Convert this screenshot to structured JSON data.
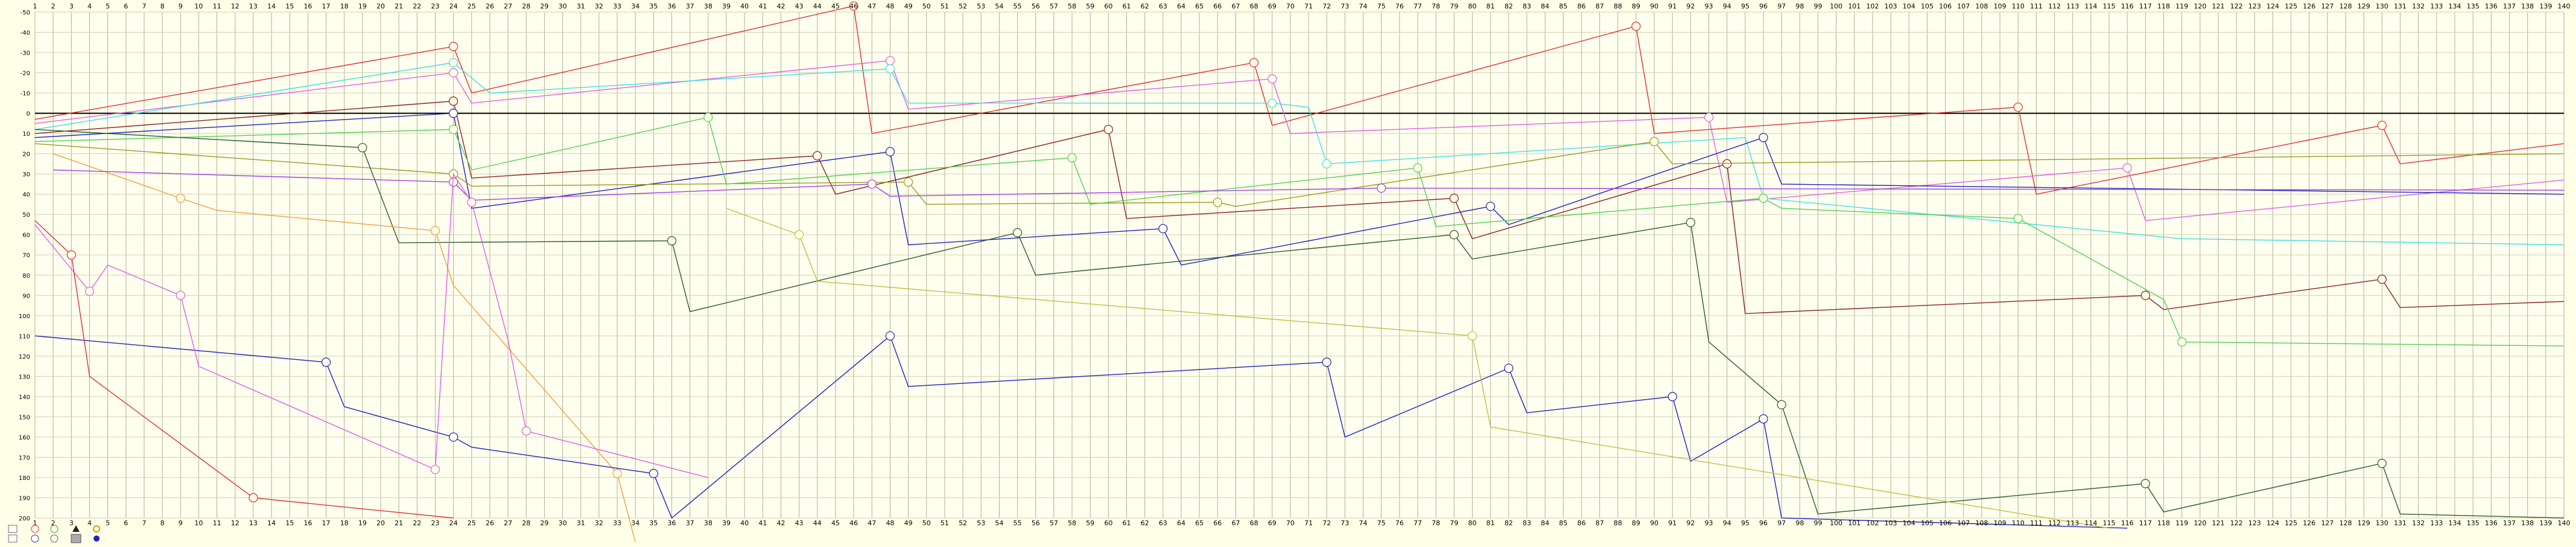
{
  "chart_data": {
    "type": "line",
    "title": "",
    "xlabel": "",
    "ylabel": "",
    "grid": true,
    "x_ticks": [
      1,
      2,
      3,
      4,
      5,
      6,
      7,
      8,
      9,
      10,
      11,
      12,
      13,
      14,
      15,
      16,
      17,
      18,
      19,
      20,
      21,
      22,
      23,
      24,
      25,
      26,
      27,
      28,
      29,
      30,
      31,
      32,
      33,
      34,
      35,
      36,
      37,
      38,
      39,
      40,
      41,
      42,
      43,
      44,
      45,
      46,
      47,
      48,
      49,
      50,
      51,
      52,
      53,
      54,
      55,
      56,
      57,
      58,
      59,
      60,
      61,
      62,
      63,
      64,
      65,
      66,
      67,
      68,
      69,
      70,
      71,
      72,
      73,
      74,
      75,
      76,
      77,
      78,
      79,
      80,
      81,
      82,
      83,
      84,
      85,
      86,
      87,
      88,
      89,
      90,
      91,
      92,
      93,
      94,
      95,
      96,
      97,
      98,
      99,
      100,
      101,
      102,
      103,
      104,
      105,
      106,
      107,
      108,
      109,
      110,
      111,
      112,
      113,
      114,
      115,
      116,
      117,
      118,
      119,
      120,
      121,
      122,
      123,
      124,
      125,
      126,
      127,
      128,
      129,
      130,
      131,
      132,
      133,
      134,
      135,
      136,
      137,
      138,
      139,
      140
    ],
    "y_ticks": [
      -50,
      -40,
      -30,
      -20,
      -10,
      0,
      10,
      20,
      30,
      40,
      50,
      60,
      70,
      80,
      90,
      100,
      110,
      120,
      130,
      140,
      150,
      160,
      170,
      180,
      190,
      200
    ],
    "xlim": [
      1,
      140
    ],
    "ylim": [
      -50,
      200
    ],
    "series": [
      {
        "color": "#e03030",
        "points": [
          [
            1,
            3
          ],
          [
            24,
            -33
          ],
          [
            25,
            -10
          ],
          [
            46,
            -53
          ],
          [
            47,
            10
          ],
          [
            68,
            -25
          ],
          [
            69,
            6
          ],
          [
            89,
            -43
          ],
          [
            90,
            10
          ],
          [
            110,
            -3
          ],
          [
            111,
            40
          ],
          [
            130,
            6
          ],
          [
            131,
            25
          ],
          [
            140,
            15
          ]
        ]
      },
      {
        "color": "#e060e0",
        "points": [
          [
            1,
            5
          ],
          [
            24,
            -20
          ],
          [
            25,
            -5
          ],
          [
            48,
            -26
          ],
          [
            49,
            -2
          ],
          [
            69,
            -17
          ],
          [
            70,
            10
          ],
          [
            93,
            2
          ],
          [
            94,
            44
          ],
          [
            116,
            27
          ],
          [
            117,
            53
          ],
          [
            140,
            33
          ]
        ]
      },
      {
        "color": "#40e0e0",
        "points": [
          [
            1,
            8
          ],
          [
            24,
            -25
          ],
          [
            26,
            -10
          ],
          [
            48,
            -22
          ],
          [
            49,
            -5
          ],
          [
            69,
            -5
          ],
          [
            71,
            -3
          ],
          [
            72,
            25
          ],
          [
            95,
            12
          ],
          [
            96,
            42
          ],
          [
            119,
            62
          ],
          [
            140,
            65
          ]
        ]
      },
      {
        "color": "#8b2020",
        "points": [
          [
            1,
            10
          ],
          [
            24,
            -6
          ],
          [
            25,
            32
          ],
          [
            44,
            21
          ],
          [
            45,
            40
          ],
          [
            60,
            8
          ],
          [
            61,
            52
          ],
          [
            79,
            42
          ],
          [
            80,
            62
          ],
          [
            94,
            25
          ],
          [
            95,
            99
          ],
          [
            117,
            90
          ],
          [
            118,
            97
          ],
          [
            130,
            82
          ],
          [
            131,
            96
          ],
          [
            140,
            93
          ]
        ]
      },
      {
        "color": "#2020c0",
        "points": [
          [
            1,
            12
          ],
          [
            24,
            0
          ],
          [
            25,
            47
          ],
          [
            48,
            19
          ],
          [
            49,
            65
          ],
          [
            63,
            57
          ],
          [
            64,
            75
          ],
          [
            81,
            46
          ],
          [
            82,
            55
          ],
          [
            96,
            12
          ],
          [
            97,
            35
          ],
          [
            140,
            40
          ]
        ]
      },
      {
        "color": "#9a9a20",
        "points": [
          [
            1,
            15
          ],
          [
            24,
            30
          ],
          [
            25,
            36
          ],
          [
            49,
            34
          ],
          [
            50,
            45
          ],
          [
            66,
            44
          ],
          [
            67,
            46
          ],
          [
            90,
            14
          ],
          [
            91,
            25
          ],
          [
            140,
            20
          ]
        ]
      },
      {
        "color": "#50d050",
        "points": [
          [
            1,
            14
          ],
          [
            24,
            8
          ],
          [
            25,
            28
          ],
          [
            38,
            2
          ],
          [
            39,
            35
          ],
          [
            58,
            22
          ],
          [
            59,
            45
          ],
          [
            77,
            27
          ],
          [
            78,
            56
          ],
          [
            96,
            42
          ],
          [
            97,
            47
          ],
          [
            110,
            52
          ],
          [
            118,
            92
          ],
          [
            119,
            113
          ],
          [
            140,
            115
          ]
        ]
      },
      {
        "color": "#2a5a2a",
        "points": [
          [
            1,
            8
          ],
          [
            19,
            17
          ],
          [
            21,
            64
          ],
          [
            36,
            63
          ],
          [
            37,
            98
          ],
          [
            55,
            59
          ],
          [
            56,
            80
          ],
          [
            79,
            60
          ],
          [
            80,
            72
          ],
          [
            92,
            54
          ],
          [
            93,
            113
          ],
          [
            97,
            144
          ],
          [
            99,
            198
          ],
          [
            117,
            183
          ],
          [
            118,
            197
          ],
          [
            130,
            173
          ],
          [
            131,
            198
          ],
          [
            140,
            200
          ]
        ]
      },
      {
        "color": "#f0a040",
        "points": [
          [
            2,
            20
          ],
          [
            9,
            42
          ],
          [
            11,
            48
          ],
          [
            23,
            58
          ],
          [
            24,
            85
          ],
          [
            33,
            178
          ],
          [
            34,
            215
          ]
        ]
      },
      {
        "color": "#a040e0",
        "points": [
          [
            2,
            28
          ],
          [
            24,
            34
          ],
          [
            25,
            43
          ],
          [
            47,
            35
          ],
          [
            48,
            41
          ],
          [
            75,
            37
          ],
          [
            140,
            38
          ]
        ]
      },
      {
        "color": "#2020c0",
        "points": [
          [
            1,
            110
          ],
          [
            17,
            123
          ],
          [
            18,
            145
          ],
          [
            24,
            160
          ],
          [
            25,
            165
          ],
          [
            35,
            178
          ],
          [
            36,
            200
          ],
          [
            48,
            110
          ],
          [
            49,
            135
          ],
          [
            72,
            123
          ],
          [
            73,
            160
          ],
          [
            82,
            126
          ],
          [
            83,
            148
          ],
          [
            91,
            140
          ],
          [
            92,
            172
          ],
          [
            96,
            151
          ],
          [
            97,
            200
          ],
          [
            116,
            205
          ]
        ]
      },
      {
        "color": "#e060e0",
        "points": [
          [
            1,
            55
          ],
          [
            4,
            88
          ],
          [
            5,
            75
          ],
          [
            9,
            90
          ],
          [
            10,
            125
          ],
          [
            23,
            176
          ],
          [
            24,
            30
          ],
          [
            25,
            44
          ],
          [
            27,
            112
          ],
          [
            28,
            157
          ],
          [
            38,
            180
          ]
        ]
      },
      {
        "color": "#e03030",
        "points": [
          [
            1,
            53
          ],
          [
            3,
            70
          ],
          [
            4,
            130
          ],
          [
            13,
            190
          ],
          [
            24,
            200
          ]
        ]
      },
      {
        "color": "#c0c040",
        "points": [
          [
            39,
            47
          ],
          [
            43,
            60
          ],
          [
            44,
            83
          ],
          [
            80,
            110
          ],
          [
            81,
            155
          ],
          [
            115,
            205
          ]
        ]
      }
    ]
  }
}
